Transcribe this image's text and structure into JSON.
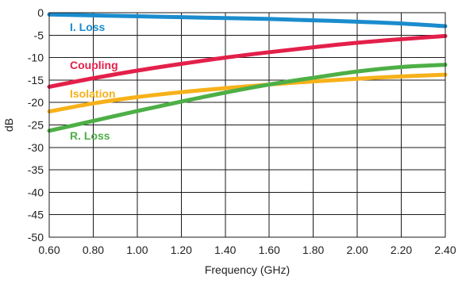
{
  "chart_data": {
    "type": "line",
    "title": "",
    "xlabel": "Frequency (GHz)",
    "ylabel": "dB",
    "xlim": [
      0.6,
      2.4
    ],
    "ylim": [
      -50,
      0
    ],
    "grid": true,
    "x_ticks": [
      "0.60",
      "0.80",
      "1.00",
      "1.20",
      "1.40",
      "1.60",
      "1.80",
      "2.00",
      "2.20",
      "2.40"
    ],
    "y_ticks": [
      "0",
      "-5",
      "-10",
      "-15",
      "-20",
      "-25",
      "-30",
      "-35",
      "-40",
      "-45",
      "-50"
    ],
    "series": [
      {
        "name": "I. Loss",
        "color": "#1a8ccd",
        "x": [
          0.6,
          0.8,
          1.0,
          1.2,
          1.4,
          1.6,
          1.8,
          2.0,
          2.2,
          2.4
        ],
        "y": [
          -0.4,
          -0.6,
          -0.8,
          -1.0,
          -1.2,
          -1.4,
          -1.7,
          -2.0,
          -2.4,
          -3.0
        ]
      },
      {
        "name": "Coupling",
        "color": "#e3204a",
        "x": [
          0.6,
          0.8,
          1.0,
          1.2,
          1.4,
          1.6,
          1.8,
          2.0,
          2.2,
          2.4
        ],
        "y": [
          -16.5,
          -14.6,
          -12.9,
          -11.4,
          -10.0,
          -8.8,
          -7.7,
          -6.7,
          -5.9,
          -5.2
        ]
      },
      {
        "name": "Isolation",
        "color": "#f7b119",
        "x": [
          0.6,
          0.8,
          1.0,
          1.2,
          1.4,
          1.6,
          1.8,
          2.0,
          2.2,
          2.4
        ],
        "y": [
          -22.0,
          -20.2,
          -18.8,
          -17.7,
          -16.8,
          -16.0,
          -15.3,
          -14.7,
          -14.2,
          -13.8
        ]
      },
      {
        "name": "R. Loss",
        "color": "#4daf46",
        "x": [
          0.6,
          0.8,
          1.0,
          1.2,
          1.4,
          1.6,
          1.8,
          2.0,
          2.2,
          2.4
        ],
        "y": [
          -26.3,
          -24.1,
          -21.9,
          -19.8,
          -17.8,
          -16.0,
          -14.5,
          -13.1,
          -12.1,
          -11.6
        ]
      }
    ]
  }
}
